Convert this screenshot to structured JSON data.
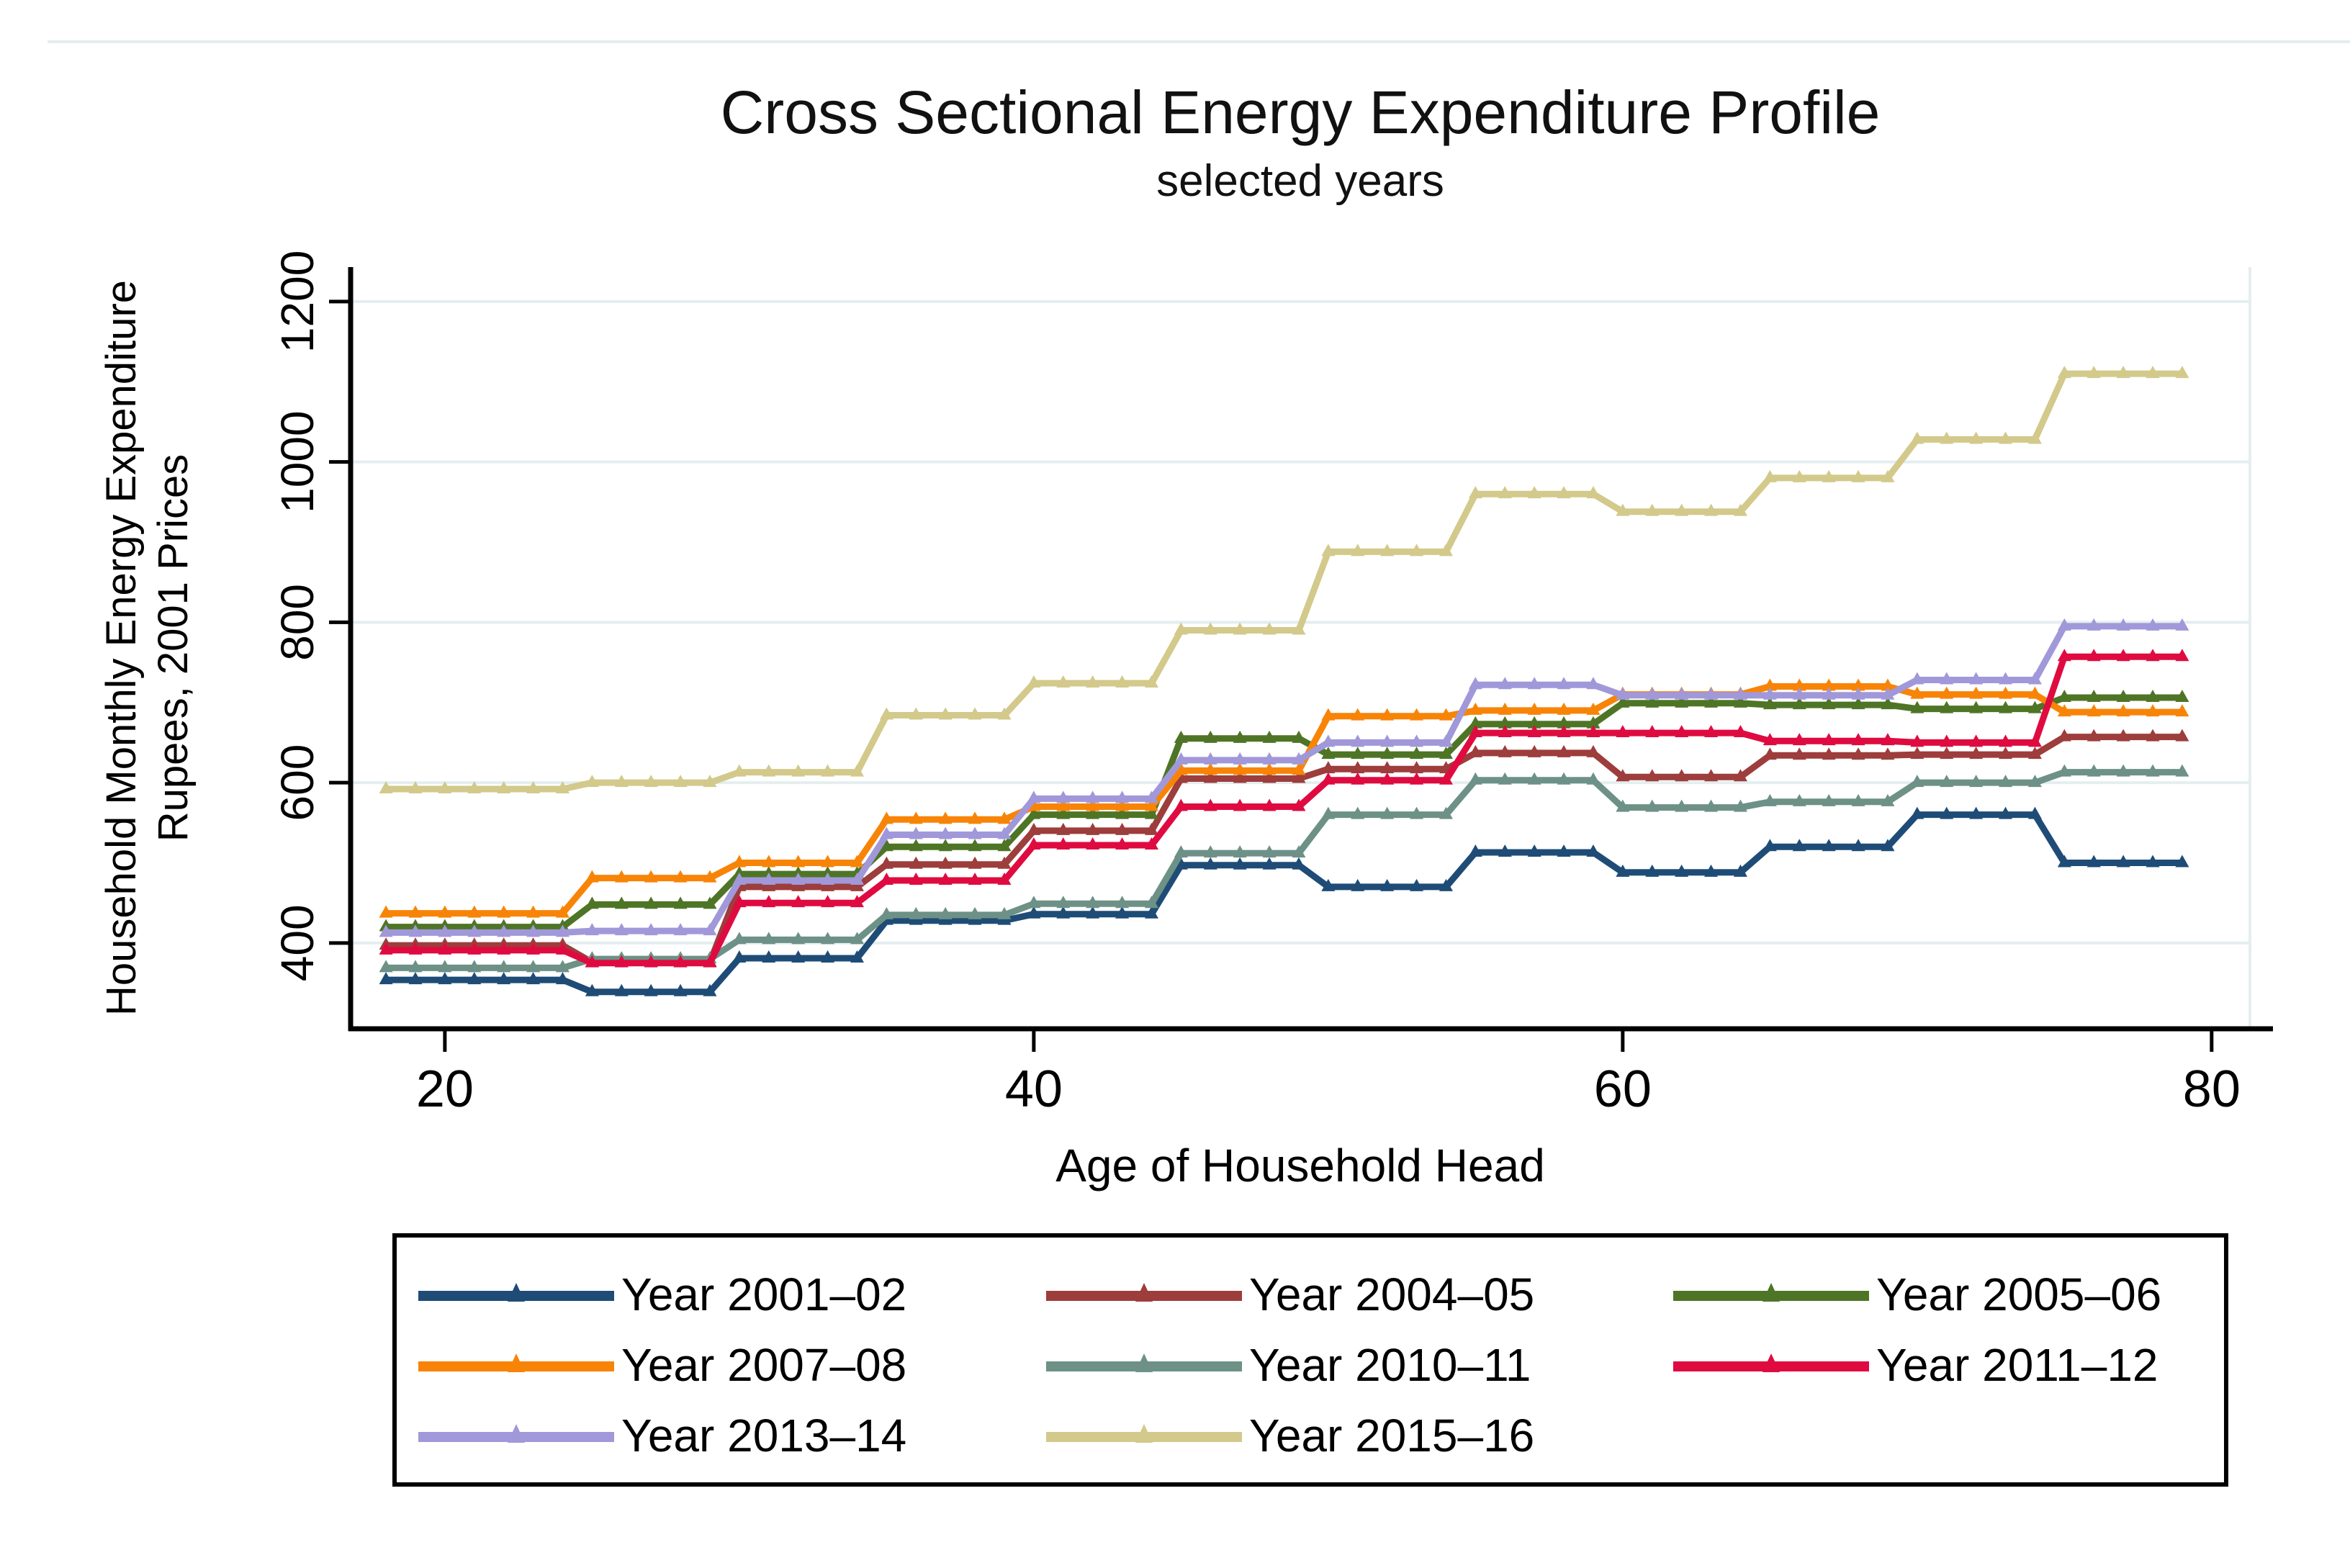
{
  "title": "Cross Sectional Energy Expenditure Profile",
  "subtitle": "selected years",
  "chart_data": {
    "type": "line",
    "title": "Cross Sectional Energy Expenditure Profile",
    "subtitle": "selected years",
    "xlabel": "Age of Household Head",
    "ylabel": [
      "Household Monthly Energy Expenditure",
      "Rupees, 2001 Prices"
    ],
    "x_ticks": [
      20,
      40,
      60,
      80
    ],
    "y_ticks": [
      400,
      600,
      800,
      1000,
      1200
    ],
    "xlim": [
      16.8,
      81.3
    ],
    "ylim": [
      293,
      1243
    ],
    "age_range": [
      18,
      79
    ],
    "grid": true,
    "legend_position": "bottom",
    "age_bins": [
      "18-24",
      "25-29",
      "30-34",
      "35-39",
      "40-44",
      "45-49",
      "50-54",
      "55-59",
      "60-64",
      "65-69",
      "70-74",
      "75-79"
    ],
    "bin_start_ages": [
      18,
      25,
      30,
      35,
      40,
      45,
      50,
      55,
      60,
      65,
      70,
      75
    ],
    "series": [
      {
        "name": "Year 2001–02",
        "color": "#1e4c77",
        "values": [
          354,
          339,
          381,
          428,
          436,
          497,
          470,
          513,
          488,
          520,
          560,
          500
        ]
      },
      {
        "name": "Year 2004–05",
        "color": "#9d3d3c",
        "values": [
          397,
          376,
          470,
          498,
          540,
          605,
          617,
          637,
          607,
          634,
          635,
          657
        ]
      },
      {
        "name": "Year 2005–06",
        "color": "#4e7526",
        "values": [
          420,
          448,
          486,
          520,
          560,
          655,
          635,
          673,
          699,
          697,
          692,
          706
        ]
      },
      {
        "name": "Year 2007–08",
        "color": "#f88407",
        "values": [
          437,
          481,
          500,
          554,
          570,
          615,
          683,
          690,
          710,
          720,
          710,
          688
        ]
      },
      {
        "name": "Year 2010–11",
        "color": "#6d9186",
        "values": [
          369,
          380,
          404,
          435,
          449,
          512,
          560,
          603,
          569,
          576,
          600,
          613
        ]
      },
      {
        "name": "Year 2011–12",
        "color": "#df0b40",
        "values": [
          391,
          375,
          450,
          478,
          522,
          570,
          603,
          662,
          662,
          652,
          650,
          757
        ]
      },
      {
        "name": "Year 2013–14",
        "color": "#a198da",
        "values": [
          413,
          415,
          478,
          535,
          580,
          628,
          650,
          722,
          709,
          709,
          728,
          795
        ]
      },
      {
        "name": "Year 2015–16",
        "color": "#d2c98b",
        "values": [
          592,
          600,
          613,
          684,
          724,
          790,
          888,
          960,
          938,
          980,
          1028,
          1110
        ]
      }
    ]
  },
  "colors": {
    "background": "#ffffff",
    "gridline": "#e4eef0",
    "axis": "#000000",
    "text": "#000000"
  }
}
